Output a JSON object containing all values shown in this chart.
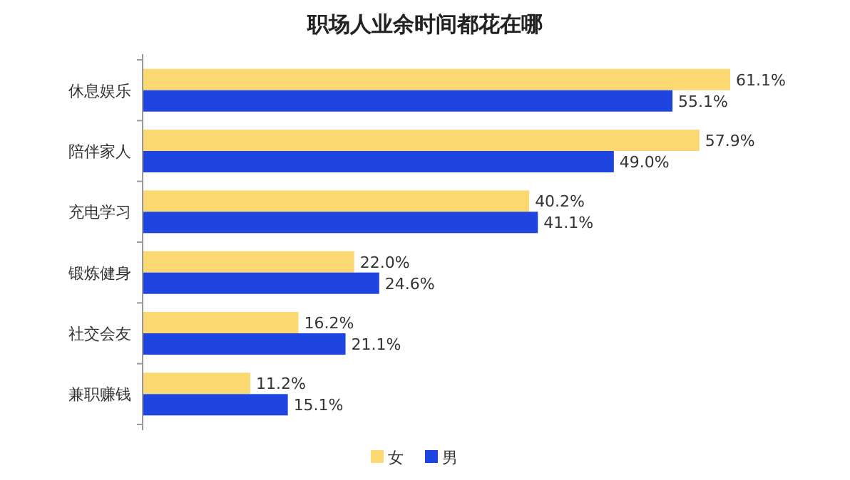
{
  "chart_data": {
    "type": "bar",
    "orientation": "horizontal",
    "title": "职场人业余时间都花在哪",
    "categories": [
      "休息娱乐",
      "陪伴家人",
      "充电学习",
      "锻炼健身",
      "社交会友",
      "兼职赚钱"
    ],
    "series": [
      {
        "name": "女",
        "color": "#fcd873",
        "values": [
          61.1,
          57.9,
          40.2,
          22.0,
          16.2,
          11.2
        ],
        "value_labels": [
          "61.1%",
          "57.9%",
          "40.2%",
          "22.0%",
          "16.2%",
          "11.2%"
        ]
      },
      {
        "name": "男",
        "color": "#1f45e0",
        "values": [
          55.1,
          49.0,
          41.1,
          24.6,
          21.1,
          15.1
        ],
        "value_labels": [
          "55.1%",
          "49.0%",
          "41.1%",
          "24.6%",
          "21.1%",
          "15.1%"
        ]
      }
    ],
    "legend": "bottom"
  }
}
